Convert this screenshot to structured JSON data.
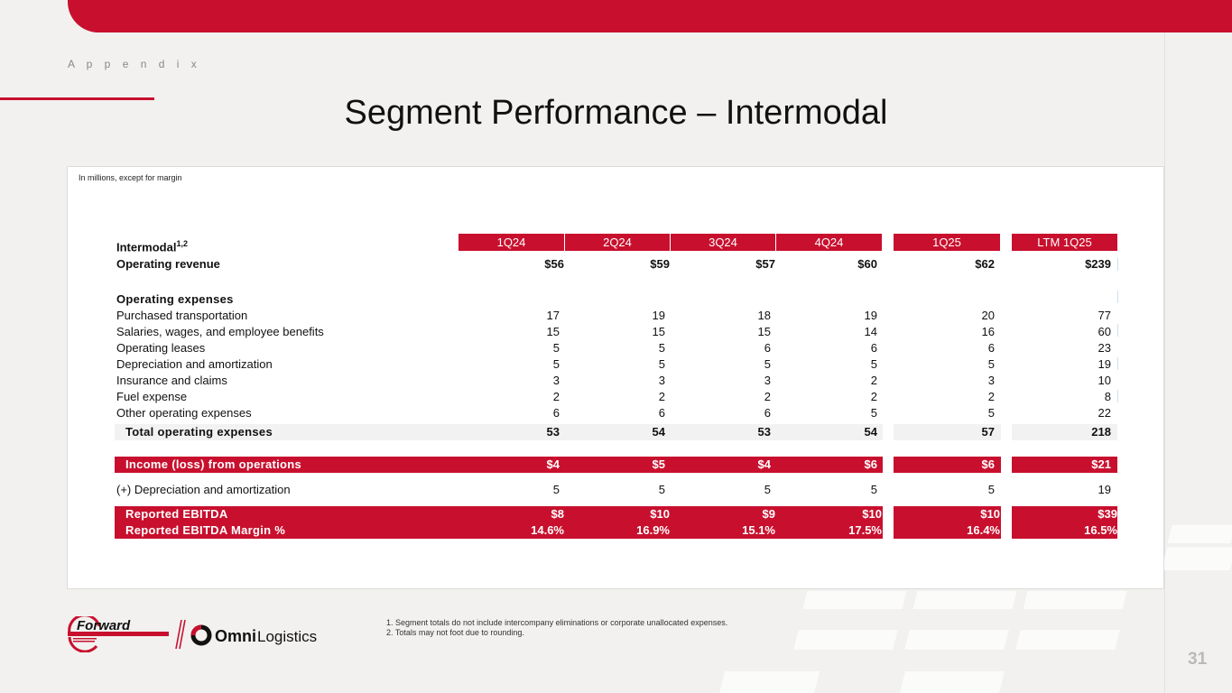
{
  "header": {
    "section_label": "A p p e n d i x",
    "title": "Segment Performance – Intermodal",
    "page_number": "31"
  },
  "brand": {
    "accent_color": "#c8102e",
    "logo_forward_text": "Forward",
    "logo_omni_text": "Omni",
    "logo_logistics_text": "Logistics"
  },
  "table": {
    "note": "In millions, except for margin",
    "segment_label": "Intermodal",
    "segment_superscript": "1,2",
    "columns": [
      "1Q24",
      "2Q24",
      "3Q24",
      "4Q24",
      "1Q25",
      "LTM 1Q25"
    ],
    "operating_revenue": {
      "label": "Operating revenue",
      "values": [
        "$56",
        "$59",
        "$57",
        "$60",
        "$62",
        "$239"
      ]
    },
    "operating_expenses_label": "Operating expenses",
    "expense_rows": [
      {
        "label": "Purchased transportation",
        "values": [
          "17",
          "19",
          "18",
          "19",
          "20",
          "77"
        ]
      },
      {
        "label": "Salaries, wages, and employee benefits",
        "values": [
          "15",
          "15",
          "15",
          "14",
          "16",
          "60"
        ]
      },
      {
        "label": "Operating leases",
        "values": [
          "5",
          "5",
          "6",
          "6",
          "6",
          "23"
        ]
      },
      {
        "label": "Depreciation and amortization",
        "values": [
          "5",
          "5",
          "5",
          "5",
          "5",
          "19"
        ]
      },
      {
        "label": "Insurance and claims",
        "values": [
          "3",
          "3",
          "3",
          "2",
          "3",
          "10"
        ]
      },
      {
        "label": "Fuel expense",
        "values": [
          "2",
          "2",
          "2",
          "2",
          "2",
          "8"
        ]
      },
      {
        "label": "Other operating expenses",
        "values": [
          "6",
          "6",
          "6",
          "5",
          "5",
          "22"
        ]
      }
    ],
    "total_operating_expenses": {
      "label": "Total operating expenses",
      "values": [
        "53",
        "54",
        "53",
        "54",
        "57",
        "218"
      ]
    },
    "income_from_operations": {
      "label": "Income (loss) from operations",
      "values": [
        "$4",
        "$5",
        "$4",
        "$6",
        "$6",
        "$21"
      ]
    },
    "add_back_da": {
      "label": "(+) Depreciation and amortization",
      "values": [
        "5",
        "5",
        "5",
        "5",
        "5",
        "19"
      ]
    },
    "reported_ebitda": {
      "label": "Reported EBITDA",
      "values": [
        "$8",
        "$10",
        "$9",
        "$10",
        "$10",
        "$39"
      ]
    },
    "reported_ebitda_margin": {
      "label": "Reported EBITDA Margin %",
      "values": [
        "14.6%",
        "16.9%",
        "15.1%",
        "17.5%",
        "16.4%",
        "16.5%"
      ]
    }
  },
  "footnotes": [
    "1.  Segment totals do not include intercompany eliminations or corporate unallocated expenses.",
    "2.  Totals may not foot due to rounding."
  ]
}
